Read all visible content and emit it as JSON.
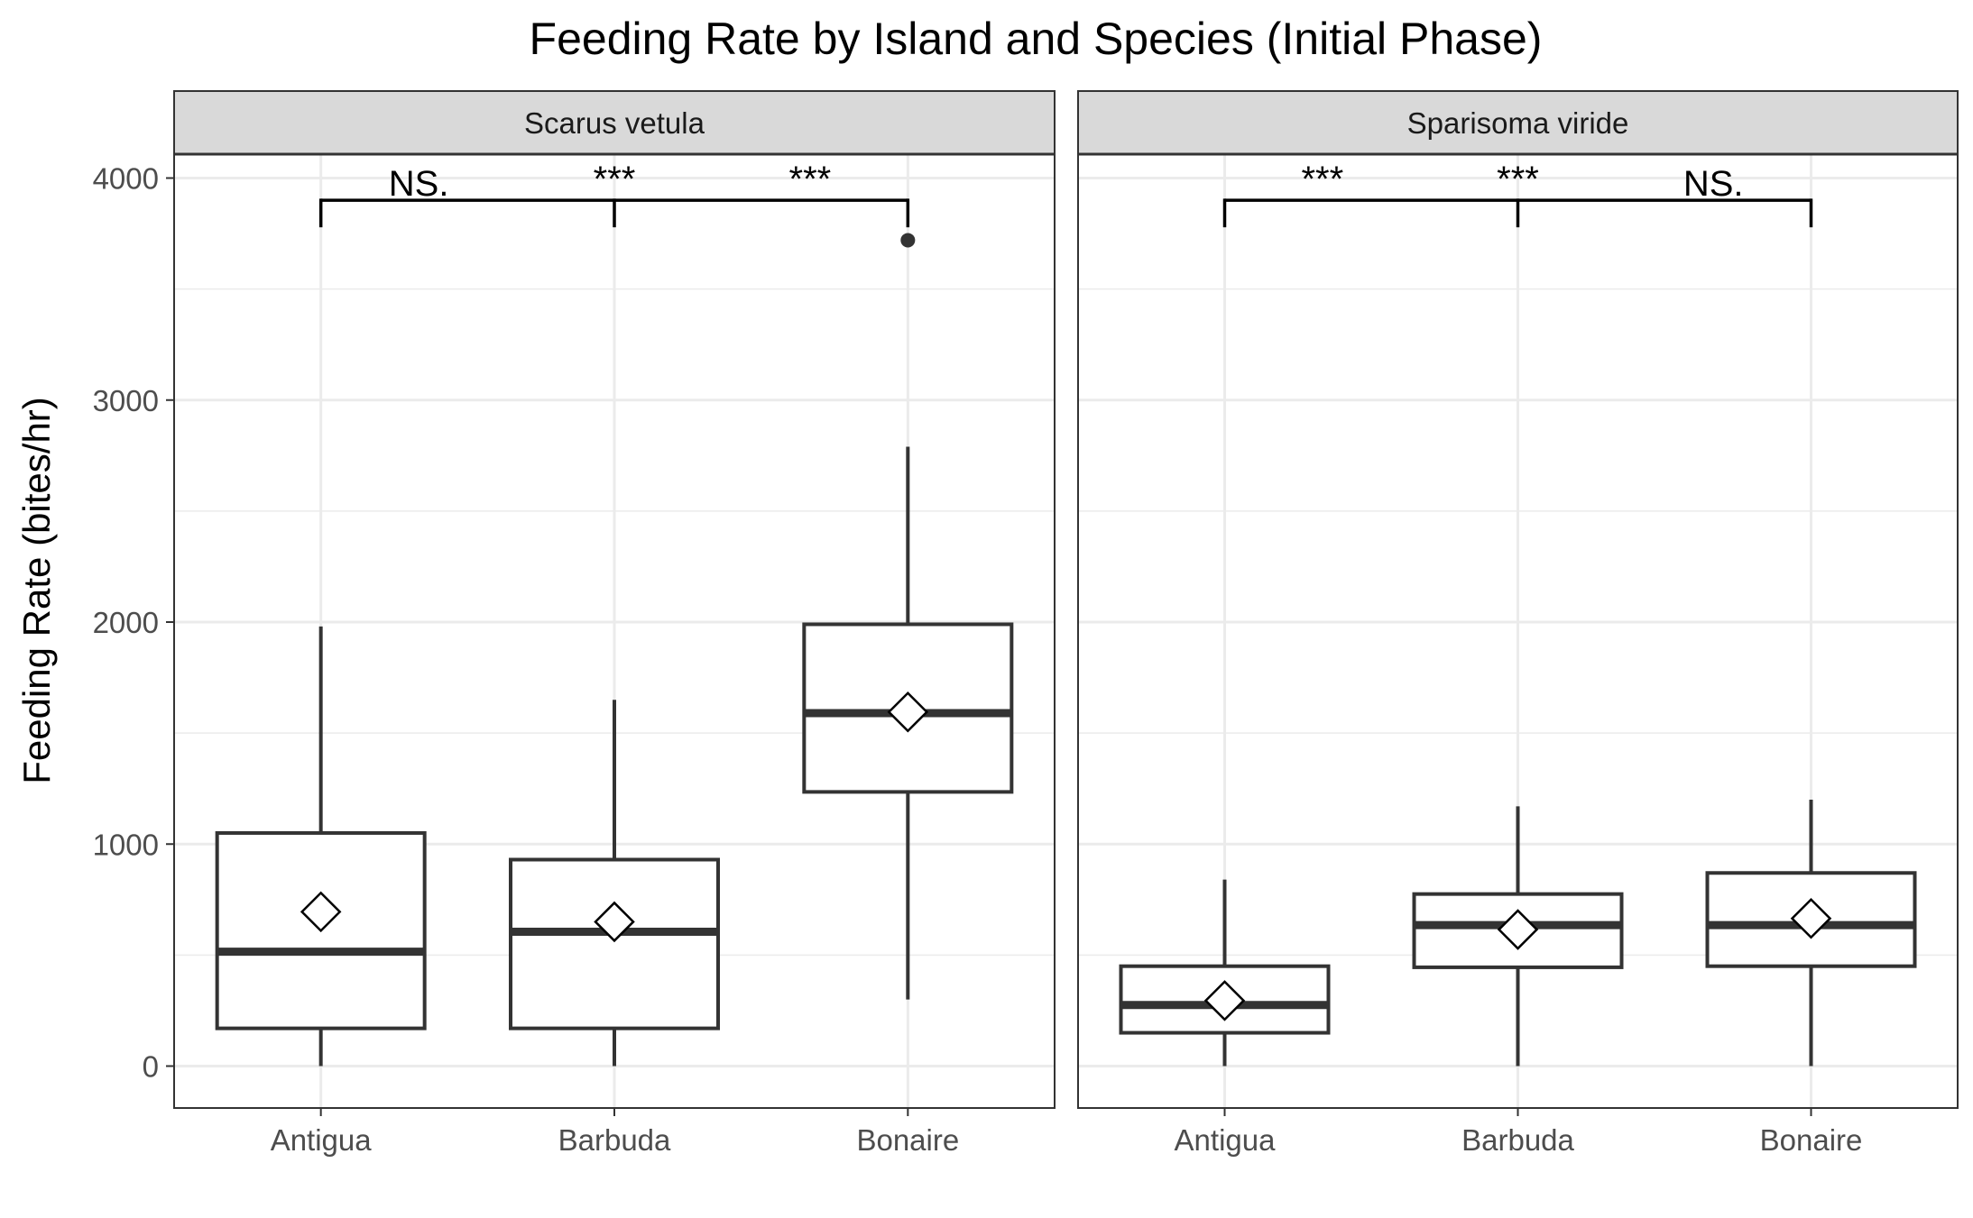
{
  "chart_data": {
    "type": "boxplot",
    "title": "Feeding Rate by Island and Species (Initial Phase)",
    "xlabel": "",
    "ylabel": "Feeding Rate (bites/hr)",
    "ylim": [
      -190,
      4100
    ],
    "y_ticks": [
      0,
      1000,
      2000,
      3000,
      4000
    ],
    "y_tick_labels": [
      "0",
      "1000",
      "2000",
      "3000",
      "4000"
    ],
    "categories": [
      "Antigua",
      "Barbuda",
      "Bonaire"
    ],
    "grid": true,
    "mean_marker": "open-diamond",
    "panels": [
      {
        "label": "Scarus vetula",
        "groups": [
          {
            "category": "Antigua",
            "min": 0,
            "q1": 170,
            "median": 515,
            "q3": 1050,
            "max": 1980,
            "mean": 695,
            "outliers": []
          },
          {
            "category": "Barbuda",
            "min": 0,
            "q1": 170,
            "median": 605,
            "q3": 930,
            "max": 1650,
            "mean": 650,
            "outliers": []
          },
          {
            "category": "Bonaire",
            "min": 300,
            "q1": 1235,
            "median": 1590,
            "q3": 1990,
            "max": 2790,
            "mean": 1595,
            "outliers": [
              3720
            ]
          }
        ],
        "comparisons": {
          "bracket_y": 3900,
          "labels": [
            "NS.",
            "***",
            "***"
          ]
        }
      },
      {
        "label": "Sparisoma viride",
        "groups": [
          {
            "category": "Antigua",
            "min": 0,
            "q1": 150,
            "median": 275,
            "q3": 450,
            "max": 840,
            "mean": 295,
            "outliers": []
          },
          {
            "category": "Barbuda",
            "min": 0,
            "q1": 445,
            "median": 635,
            "q3": 775,
            "max": 1170,
            "mean": 615,
            "outliers": []
          },
          {
            "category": "Bonaire",
            "min": 0,
            "q1": 450,
            "median": 635,
            "q3": 870,
            "max": 1200,
            "mean": 665,
            "outliers": []
          }
        ],
        "comparisons": {
          "bracket_y": 3900,
          "labels": [
            "***",
            "***",
            "NS."
          ]
        }
      }
    ]
  }
}
